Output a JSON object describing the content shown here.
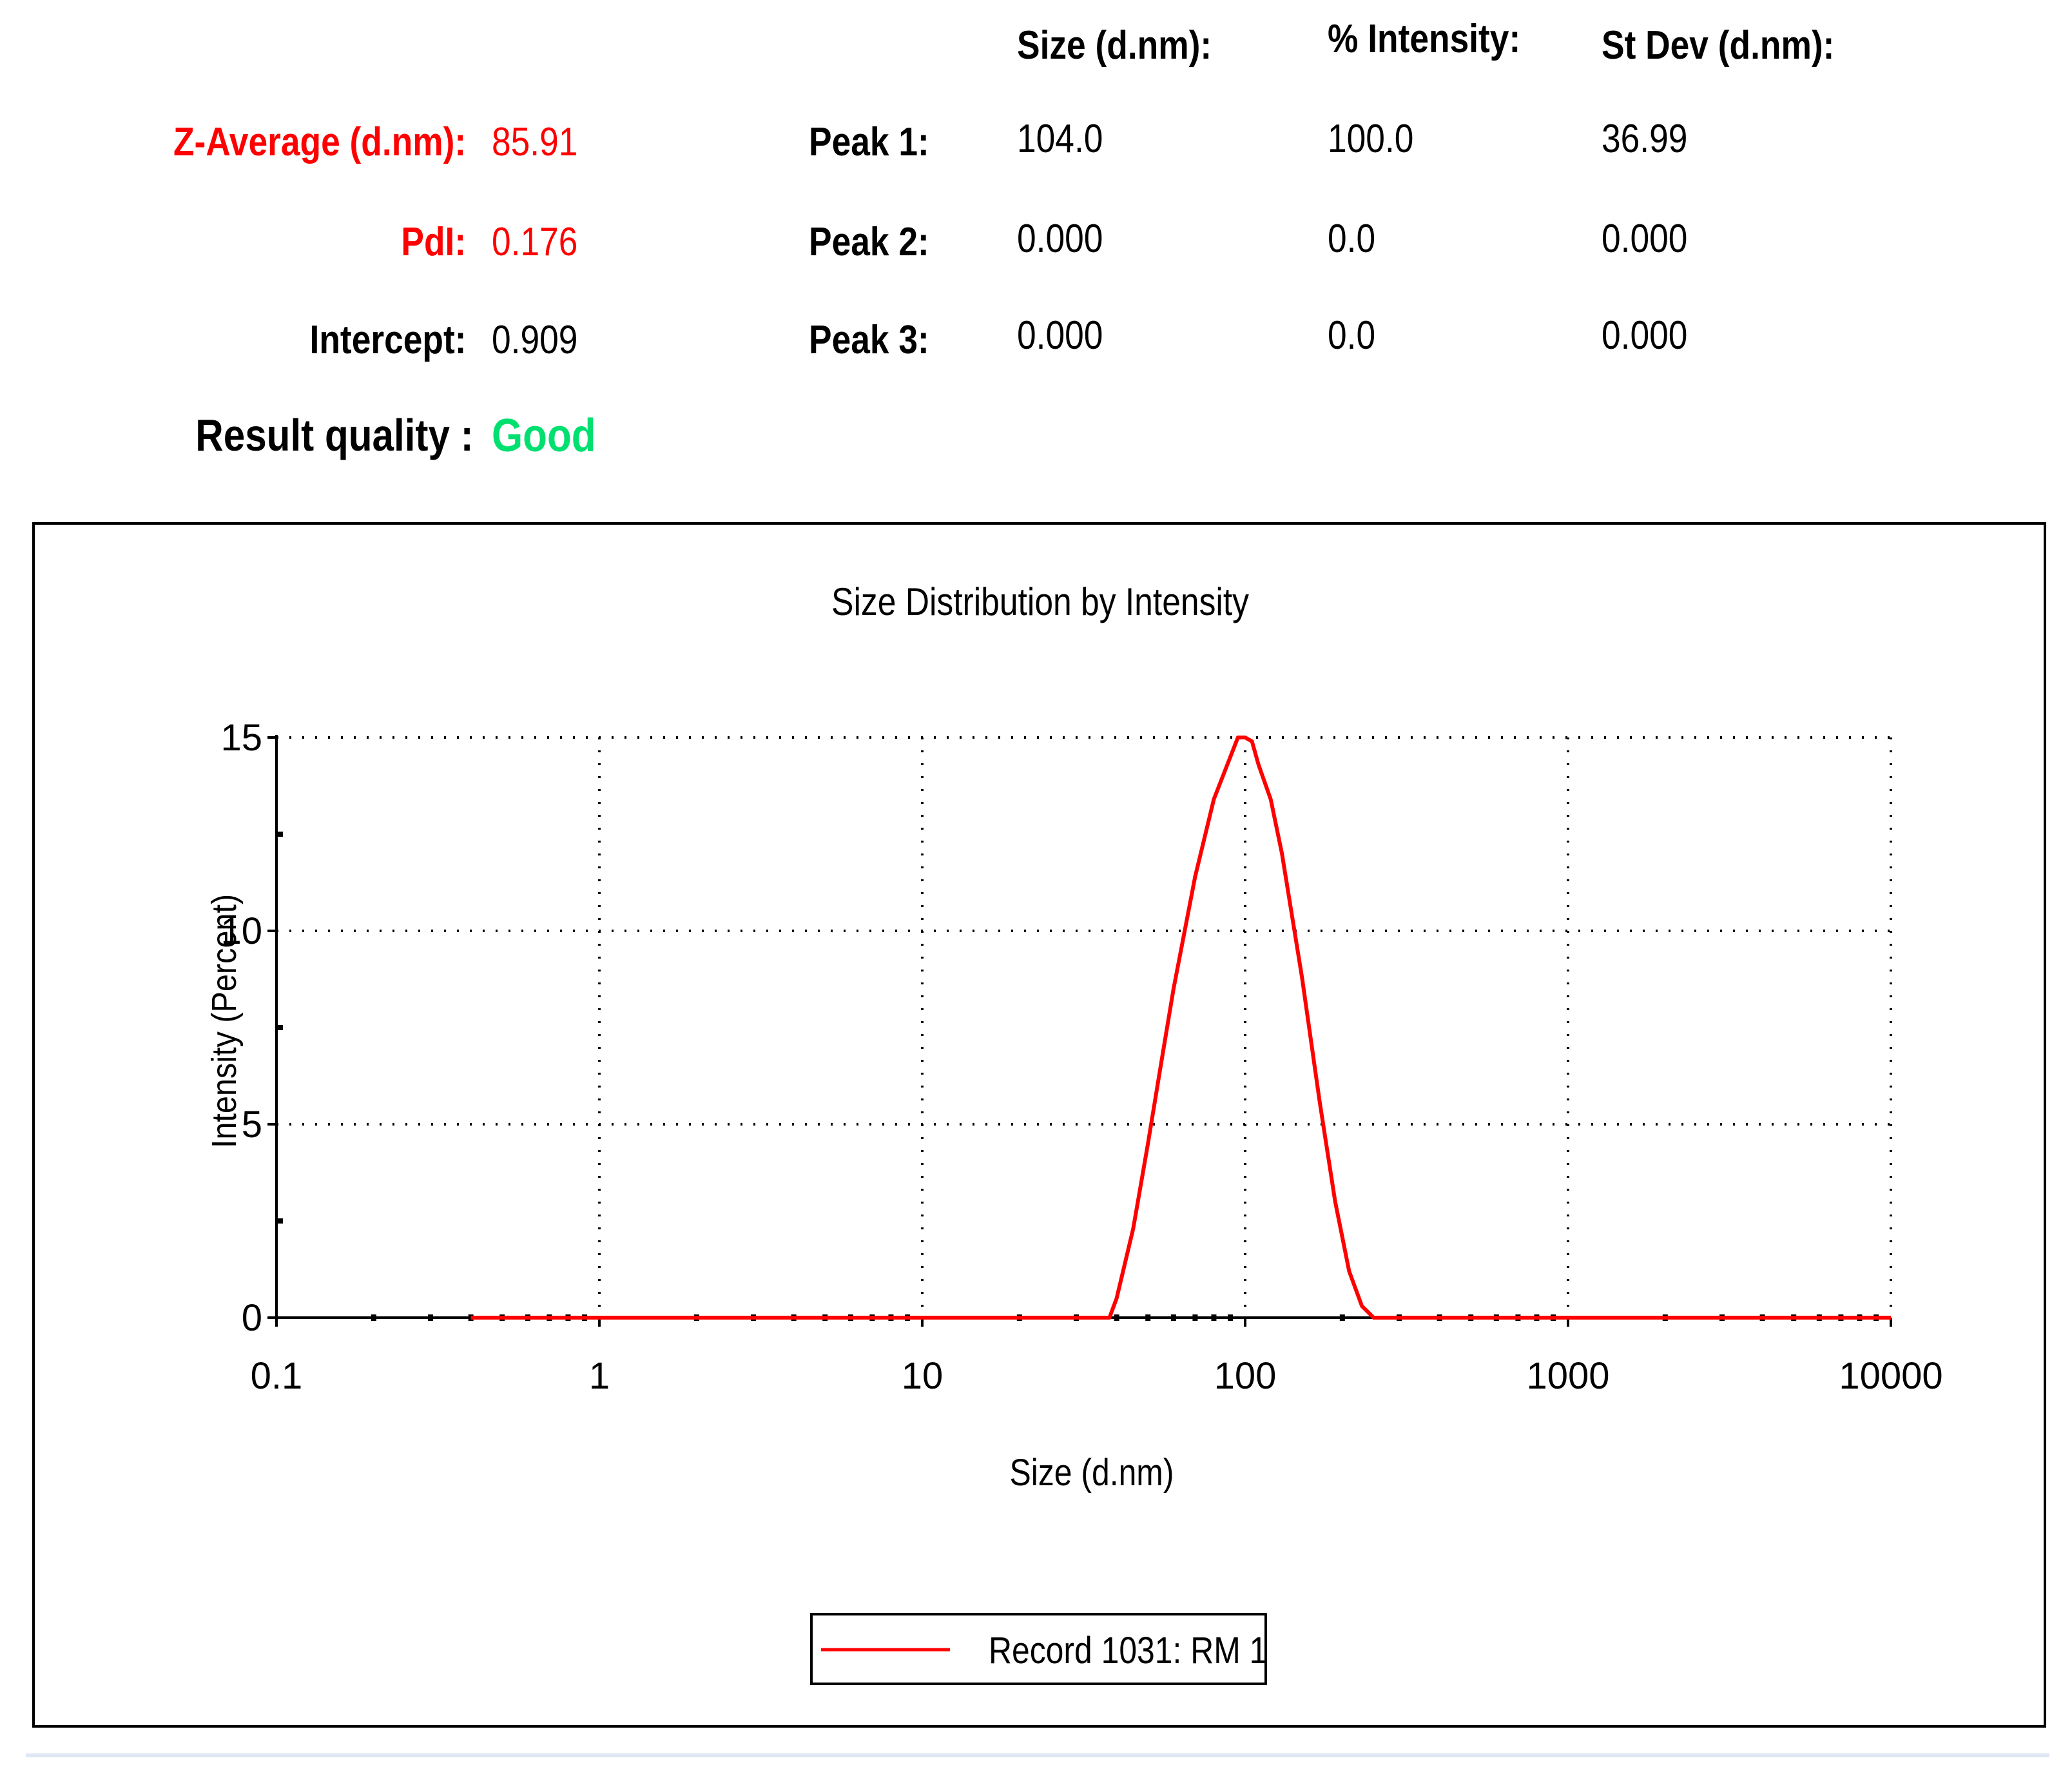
{
  "summary": {
    "z_average": {
      "label": "Z-Average (d.nm):",
      "value": "85.91",
      "color": "#ff0000"
    },
    "pdi": {
      "label": "PdI:",
      "value": "0.176",
      "color": "#ff0000"
    },
    "intercept": {
      "label": "Intercept:",
      "value": "0.909"
    },
    "result_quality": {
      "label": "Result quality :",
      "value": "Good",
      "color": "#00e070"
    }
  },
  "peaks_table": {
    "headers": [
      "Size (d.nm):",
      "% Intensity:",
      "St Dev (d.nm):"
    ],
    "rows": [
      {
        "label": "Peak 1:",
        "size": "104.0",
        "intensity": "100.0",
        "stdev": "36.99"
      },
      {
        "label": "Peak 2:",
        "size": "0.000",
        "intensity": "0.0",
        "stdev": "0.000"
      },
      {
        "label": "Peak 3:",
        "size": "0.000",
        "intensity": "0.0",
        "stdev": "0.000"
      }
    ]
  },
  "chart_data": {
    "type": "line",
    "title": "Size Distribution by Intensity",
    "xlabel": "Size (d.nm)",
    "ylabel": "Intensity (Percent)",
    "x_scale": "log",
    "xlim": [
      0.1,
      10000
    ],
    "ylim": [
      0,
      15
    ],
    "x_ticks": [
      "0.1",
      "1",
      "10",
      "100",
      "1000",
      "10000"
    ],
    "y_ticks": [
      "0",
      "5",
      "10",
      "15"
    ],
    "grid": true,
    "legend_position": "bottom-center",
    "series": [
      {
        "name": "Record 1031: RM 1",
        "color": "#ff0000",
        "x": [
          0.4,
          1,
          10,
          38,
          40,
          45,
          50,
          55,
          60,
          70,
          80,
          90,
          95,
          100,
          105,
          110,
          120,
          130,
          150,
          170,
          190,
          210,
          230,
          250,
          300,
          1000,
          10000
        ],
        "y": [
          0,
          0,
          0,
          0,
          0.5,
          2.3,
          4.5,
          6.6,
          8.5,
          11.4,
          13.4,
          14.5,
          15.0,
          15.0,
          14.9,
          14.3,
          13.4,
          12.0,
          8.8,
          5.6,
          3.0,
          1.2,
          0.3,
          0,
          0,
          0,
          0
        ]
      }
    ]
  }
}
